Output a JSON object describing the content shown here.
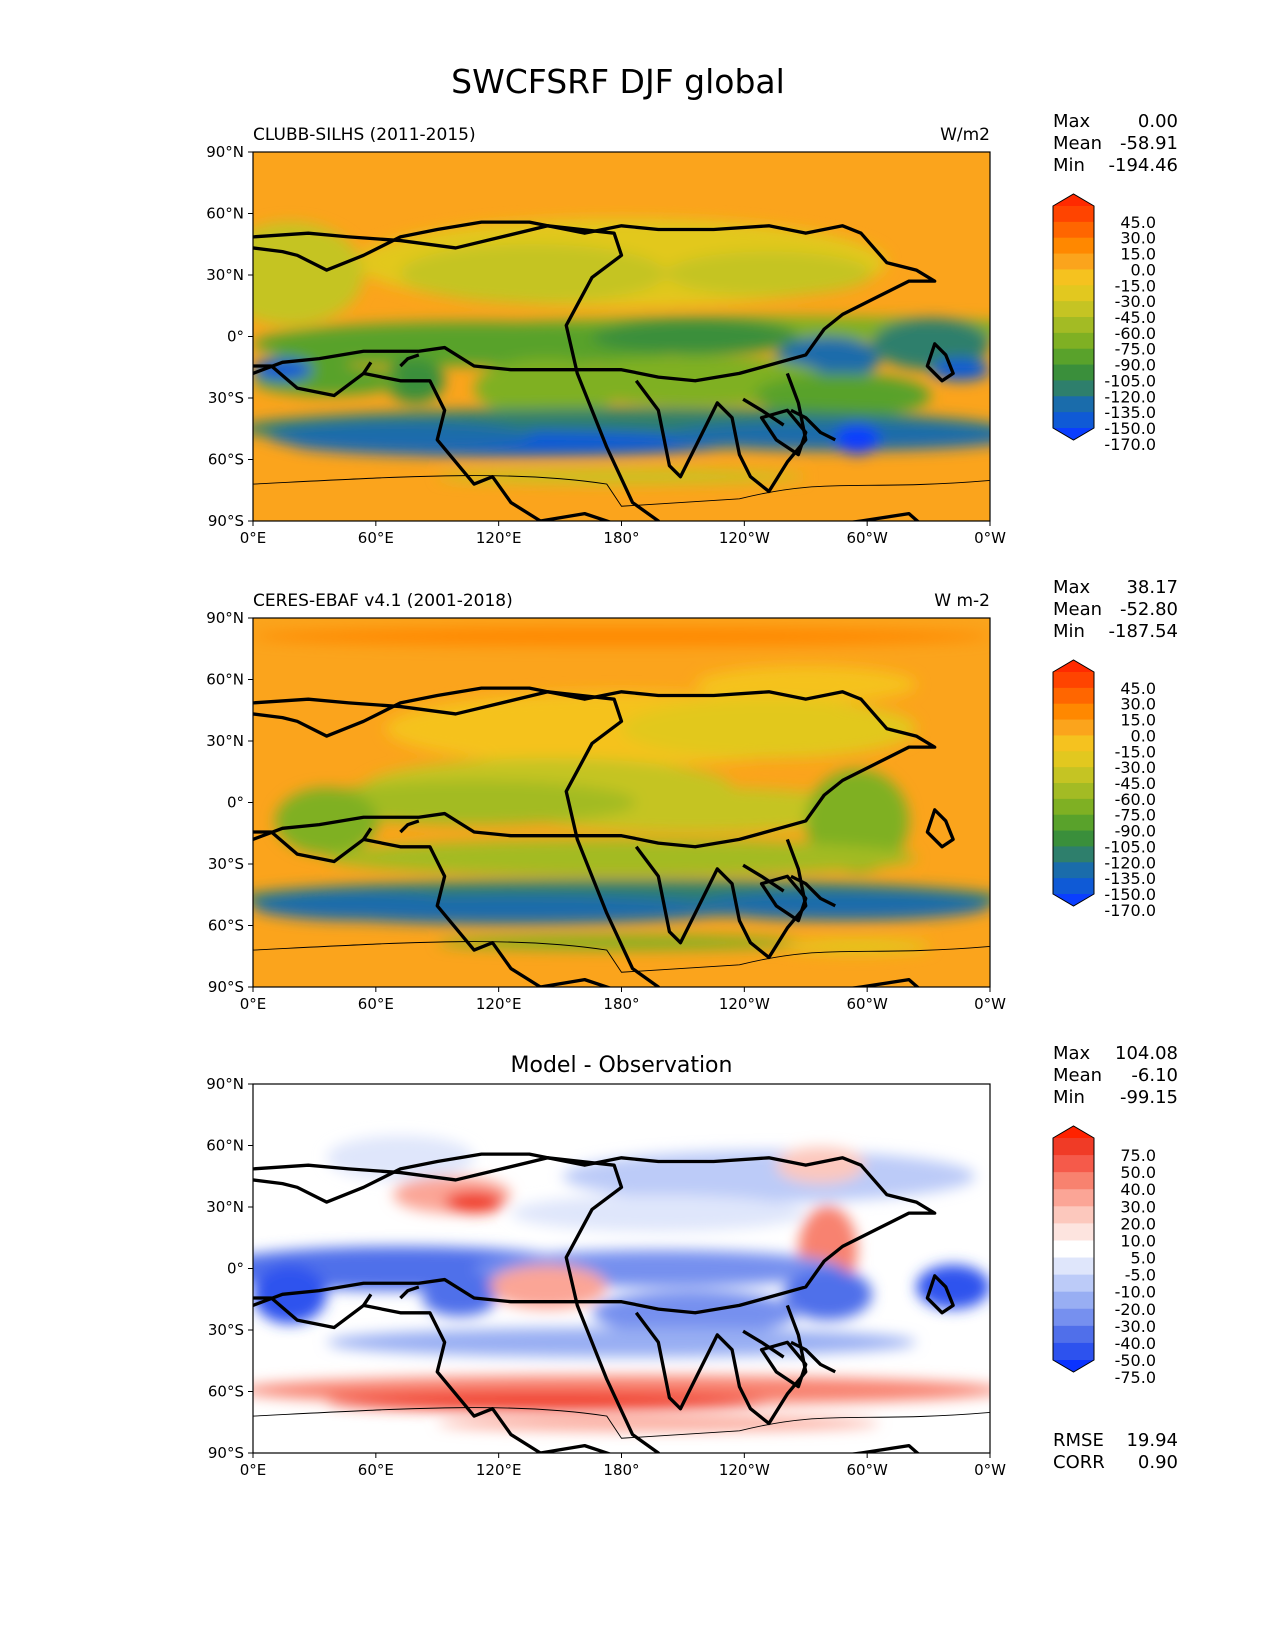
{
  "figure": {
    "title": "SWCFSRF DJF global",
    "x_tick_labels": [
      "0°E",
      "60°E",
      "120°E",
      "180°",
      "120°W",
      "60°W",
      "0°W"
    ],
    "y_tick_labels": [
      "90°N",
      "60°N",
      "30°N",
      "0°",
      "30°S",
      "60°S",
      "90°S"
    ]
  },
  "panels": [
    {
      "left_title": "CLUBB-SILHS (2011-2015)",
      "right_title": "W/m2",
      "center_title": "",
      "stats": [
        {
          "label": "Max",
          "value": "0.00"
        },
        {
          "label": "Mean",
          "value": "-58.91"
        },
        {
          "label": "Min",
          "value": "-194.46"
        }
      ],
      "colorbar": {
        "levels": [
          "45.0",
          "30.0",
          "15.0",
          "0.0",
          "-15.0",
          "-30.0",
          "-45.0",
          "-60.0",
          "-75.0",
          "-90.0",
          "-105.0",
          "-120.0",
          "-135.0",
          "-150.0",
          "-170.0"
        ],
        "colors": [
          "#ff2a00",
          "#ff4400",
          "#ff6600",
          "#ff8800",
          "#fba41c",
          "#f5c21f",
          "#e2c81f",
          "#c5c423",
          "#a3bb24",
          "#7fb023",
          "#59a22b",
          "#3a8f3b",
          "#2e7f6c",
          "#1a6cab",
          "#0f5ad6",
          "#0a3eff"
        ]
      }
    },
    {
      "left_title": "CERES-EBAF v4.1 (2001-2018)",
      "right_title": "W m-2",
      "center_title": "",
      "stats": [
        {
          "label": "Max",
          "value": "38.17"
        },
        {
          "label": "Mean",
          "value": "-52.80"
        },
        {
          "label": "Min",
          "value": "-187.54"
        }
      ],
      "colorbar": {
        "levels": [
          "45.0",
          "30.0",
          "15.0",
          "0.0",
          "-15.0",
          "-30.0",
          "-45.0",
          "-60.0",
          "-75.0",
          "-90.0",
          "-105.0",
          "-120.0",
          "-135.0",
          "-150.0",
          "-170.0"
        ],
        "colors": [
          "#ff2a00",
          "#ff4400",
          "#ff6600",
          "#ff8800",
          "#fba41c",
          "#f5c21f",
          "#e2c81f",
          "#c5c423",
          "#a3bb24",
          "#7fb023",
          "#59a22b",
          "#3a8f3b",
          "#2e7f6c",
          "#1a6cab",
          "#0f5ad6",
          "#0a3eff"
        ]
      }
    },
    {
      "left_title": "",
      "right_title": "",
      "center_title": "Model - Observation",
      "stats": [
        {
          "label": "Max",
          "value": "104.08"
        },
        {
          "label": "Mean",
          "value": "-6.10"
        },
        {
          "label": "Min",
          "value": "-99.15"
        }
      ],
      "extra_stats": [
        {
          "label": "RMSE",
          "value": "19.94"
        },
        {
          "label": "CORR",
          "value": "0.90"
        }
      ],
      "colorbar": {
        "levels": [
          "75.0",
          "50.0",
          "40.0",
          "30.0",
          "20.0",
          "10.0",
          "5.0",
          "-5.0",
          "-10.0",
          "-20.0",
          "-30.0",
          "-40.0",
          "-50.0",
          "-75.0"
        ],
        "colors": [
          "#ff2200",
          "#f03b26",
          "#f55a4a",
          "#f8826f",
          "#fba596",
          "#fcc8bd",
          "#fde4df",
          "#ffffff",
          "#dfe6fb",
          "#bccbf8",
          "#98aef3",
          "#7690ef",
          "#506fea",
          "#2d52ee",
          "#0a33ff"
        ]
      }
    }
  ]
}
